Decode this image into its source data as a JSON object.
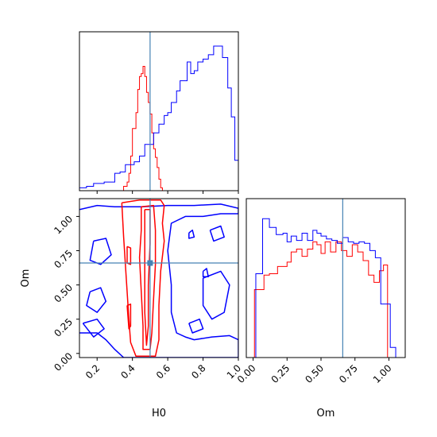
{
  "chart_data": {
    "type": "corner",
    "truth": {
      "H0": 0.5,
      "Om": 0.66
    },
    "colors": {
      "red": "#ff0000",
      "blue": "#0000ff",
      "truth": "#4682b4"
    },
    "panels": [
      {
        "id": "H0-marginal",
        "type": "histogram",
        "x_range": [
          0.1,
          1.0
        ],
        "series": [
          {
            "color": "#ff0000",
            "bins": [
              [
                0.1,
                0.0
              ],
              [
                0.34,
                0.0
              ],
              [
                0.35,
                0.03
              ],
              [
                0.37,
                0.06
              ],
              [
                0.38,
                0.12
              ],
              [
                0.39,
                0.24
              ],
              [
                0.4,
                0.43
              ],
              [
                0.42,
                0.54
              ],
              [
                0.43,
                0.7
              ],
              [
                0.44,
                0.79
              ],
              [
                0.45,
                0.81
              ],
              [
                0.46,
                0.86
              ],
              [
                0.47,
                0.79
              ],
              [
                0.48,
                0.68
              ],
              [
                0.49,
                0.61
              ],
              [
                0.5,
                0.53
              ],
              [
                0.51,
                0.4
              ],
              [
                0.52,
                0.29
              ],
              [
                0.53,
                0.23
              ],
              [
                0.54,
                0.16
              ],
              [
                0.55,
                0.08
              ],
              [
                0.56,
                0.02
              ],
              [
                0.57,
                0.0
              ]
            ]
          },
          {
            "color": "#0000ff",
            "bins": [
              [
                0.1,
                0.02
              ],
              [
                0.14,
                0.03
              ],
              [
                0.18,
                0.05
              ],
              [
                0.24,
                0.06
              ],
              [
                0.3,
                0.12
              ],
              [
                0.33,
                0.13
              ],
              [
                0.36,
                0.18
              ],
              [
                0.41,
                0.2
              ],
              [
                0.44,
                0.24
              ],
              [
                0.47,
                0.32
              ],
              [
                0.52,
                0.4
              ],
              [
                0.55,
                0.46
              ],
              [
                0.58,
                0.52
              ],
              [
                0.6,
                0.54
              ],
              [
                0.62,
                0.61
              ],
              [
                0.65,
                0.69
              ],
              [
                0.67,
                0.76
              ],
              [
                0.71,
                0.89
              ],
              [
                0.73,
                0.81
              ],
              [
                0.75,
                0.83
              ],
              [
                0.77,
                0.89
              ],
              [
                0.8,
                0.91
              ],
              [
                0.83,
                0.94
              ],
              [
                0.86,
                1.0
              ],
              [
                0.91,
                0.92
              ],
              [
                0.94,
                0.71
              ],
              [
                0.96,
                0.51
              ],
              [
                0.98,
                0.21
              ],
              [
                1.0,
                0.21
              ]
            ]
          }
        ]
      },
      {
        "id": "H0-Om-contour",
        "type": "contour",
        "x_range": [
          0.1,
          1.0
        ],
        "y_range": [
          -0.03,
          1.13
        ],
        "red_contours": [
          [
            [
              0.34,
              1.1
            ],
            [
              0.44,
              1.12
            ],
            [
              0.56,
              1.12
            ],
            [
              0.58,
              1.08
            ],
            [
              0.57,
              0.95
            ],
            [
              0.58,
              0.82
            ],
            [
              0.56,
              0.6
            ],
            [
              0.55,
              0.35
            ],
            [
              0.55,
              0.1
            ],
            [
              0.53,
              -0.02
            ],
            [
              0.42,
              -0.02
            ],
            [
              0.39,
              0.08
            ],
            [
              0.38,
              0.25
            ],
            [
              0.37,
              0.45
            ],
            [
              0.36,
              0.65
            ],
            [
              0.35,
              0.85
            ],
            [
              0.34,
              1.1
            ]
          ],
          [
            [
              0.45,
              1.07
            ],
            [
              0.52,
              1.08
            ],
            [
              0.53,
              0.9
            ],
            [
              0.53,
              0.65
            ],
            [
              0.52,
              0.4
            ],
            [
              0.51,
              0.15
            ],
            [
              0.5,
              0.03
            ],
            [
              0.46,
              0.03
            ],
            [
              0.46,
              0.2
            ],
            [
              0.45,
              0.45
            ],
            [
              0.44,
              0.7
            ],
            [
              0.45,
              0.9
            ],
            [
              0.45,
              1.07
            ]
          ],
          [
            [
              0.47,
              1.05
            ],
            [
              0.5,
              1.05
            ],
            [
              0.5,
              0.8
            ],
            [
              0.49,
              0.5
            ],
            [
              0.49,
              0.2
            ],
            [
              0.48,
              0.06
            ],
            [
              0.47,
              0.3
            ],
            [
              0.47,
              0.6
            ],
            [
              0.47,
              1.05
            ]
          ],
          [
            [
              0.37,
              0.35
            ],
            [
              0.39,
              0.36
            ],
            [
              0.39,
              0.2
            ],
            [
              0.38,
              0.18
            ],
            [
              0.37,
              0.35
            ]
          ],
          [
            [
              0.37,
              0.78
            ],
            [
              0.39,
              0.77
            ],
            [
              0.39,
              0.65
            ],
            [
              0.37,
              0.66
            ],
            [
              0.37,
              0.78
            ]
          ]
        ],
        "blue_contours": [
          [
            [
              0.1,
              1.05
            ],
            [
              0.2,
              1.08
            ],
            [
              0.3,
              1.07
            ],
            [
              0.45,
              1.07
            ],
            [
              0.6,
              1.08
            ],
            [
              0.75,
              1.08
            ],
            [
              0.9,
              1.09
            ],
            [
              1.0,
              1.06
            ],
            [
              1.0,
              1.02
            ],
            [
              0.9,
              1.02
            ],
            [
              0.8,
              1.0
            ],
            [
              0.7,
              1.0
            ],
            [
              0.62,
              0.95
            ],
            [
              0.6,
              0.75
            ],
            [
              0.62,
              0.5
            ],
            [
              0.62,
              0.3
            ],
            [
              0.65,
              0.15
            ],
            [
              0.7,
              0.12
            ],
            [
              0.75,
              0.1
            ],
            [
              0.85,
              0.12
            ],
            [
              0.95,
              0.13
            ],
            [
              1.0,
              0.1
            ],
            [
              1.0,
              -0.03
            ],
            [
              0.55,
              -0.03
            ],
            [
              0.35,
              -0.03
            ],
            [
              0.3,
              0.03
            ],
            [
              0.25,
              0.1
            ],
            [
              0.2,
              0.15
            ],
            [
              0.1,
              0.15
            ]
          ],
          [
            [
              0.18,
              0.82
            ],
            [
              0.25,
              0.84
            ],
            [
              0.28,
              0.72
            ],
            [
              0.22,
              0.65
            ],
            [
              0.16,
              0.68
            ],
            [
              0.18,
              0.82
            ]
          ],
          [
            [
              0.16,
              0.45
            ],
            [
              0.22,
              0.48
            ],
            [
              0.25,
              0.38
            ],
            [
              0.2,
              0.3
            ],
            [
              0.14,
              0.35
            ],
            [
              0.16,
              0.45
            ]
          ],
          [
            [
              0.12,
              0.22
            ],
            [
              0.2,
              0.25
            ],
            [
              0.24,
              0.18
            ],
            [
              0.18,
              0.12
            ],
            [
              0.12,
              0.22
            ]
          ],
          [
            [
              0.8,
              0.55
            ],
            [
              0.9,
              0.6
            ],
            [
              0.95,
              0.5
            ],
            [
              0.92,
              0.3
            ],
            [
              0.85,
              0.25
            ],
            [
              0.8,
              0.35
            ],
            [
              0.8,
              0.55
            ]
          ],
          [
            [
              0.84,
              0.9
            ],
            [
              0.9,
              0.93
            ],
            [
              0.92,
              0.85
            ],
            [
              0.86,
              0.82
            ],
            [
              0.84,
              0.9
            ]
          ],
          [
            [
              0.72,
              0.22
            ],
            [
              0.78,
              0.25
            ],
            [
              0.8,
              0.18
            ],
            [
              0.74,
              0.15
            ],
            [
              0.72,
              0.22
            ]
          ],
          [
            [
              0.72,
              0.88
            ],
            [
              0.74,
              0.9
            ],
            [
              0.75,
              0.85
            ],
            [
              0.72,
              0.84
            ],
            [
              0.72,
              0.88
            ]
          ],
          [
            [
              0.8,
              0.6
            ],
            [
              0.82,
              0.62
            ],
            [
              0.83,
              0.56
            ],
            [
              0.8,
              0.56
            ],
            [
              0.8,
              0.6
            ]
          ]
        ]
      },
      {
        "id": "Om-marginal",
        "type": "histogram",
        "x_range": [
          -0.05,
          1.12
        ],
        "series": [
          {
            "color": "#ff0000",
            "bins": [
              [
                0.0,
                0.0
              ],
              [
                0.01,
                0.47
              ],
              [
                0.08,
                0.57
              ],
              [
                0.12,
                0.58
              ],
              [
                0.18,
                0.63
              ],
              [
                0.22,
                0.63
              ],
              [
                0.25,
                0.66
              ],
              [
                0.28,
                0.73
              ],
              [
                0.32,
                0.75
              ],
              [
                0.36,
                0.7
              ],
              [
                0.4,
                0.75
              ],
              [
                0.44,
                0.8
              ],
              [
                0.47,
                0.78
              ],
              [
                0.5,
                0.72
              ],
              [
                0.53,
                0.8
              ],
              [
                0.57,
                0.73
              ],
              [
                0.61,
                0.8
              ],
              [
                0.65,
                0.74
              ],
              [
                0.69,
                0.7
              ],
              [
                0.73,
                0.78
              ],
              [
                0.77,
                0.73
              ],
              [
                0.81,
                0.67
              ],
              [
                0.85,
                0.57
              ],
              [
                0.89,
                0.52
              ],
              [
                0.93,
                0.6
              ],
              [
                0.96,
                0.64
              ],
              [
                0.98,
                0.64
              ],
              [
                0.99,
                0.0
              ]
            ]
          },
          {
            "color": "#0000ff",
            "bins": [
              [
                -0.05,
                0.0
              ],
              [
                0.0,
                0.0
              ],
              [
                0.02,
                0.58
              ],
              [
                0.07,
                0.96
              ],
              [
                0.12,
                0.9
              ],
              [
                0.17,
                0.85
              ],
              [
                0.22,
                0.86
              ],
              [
                0.25,
                0.8
              ],
              [
                0.28,
                0.84
              ],
              [
                0.32,
                0.81
              ],
              [
                0.36,
                0.86
              ],
              [
                0.4,
                0.81
              ],
              [
                0.44,
                0.88
              ],
              [
                0.47,
                0.86
              ],
              [
                0.5,
                0.84
              ],
              [
                0.54,
                0.82
              ],
              [
                0.58,
                0.81
              ],
              [
                0.62,
                0.79
              ],
              [
                0.66,
                0.83
              ],
              [
                0.7,
                0.8
              ],
              [
                0.74,
                0.79
              ],
              [
                0.78,
                0.8
              ],
              [
                0.82,
                0.79
              ],
              [
                0.86,
                0.74
              ],
              [
                0.9,
                0.69
              ],
              [
                0.94,
                0.37
              ],
              [
                0.98,
                0.37
              ],
              [
                1.01,
                0.07
              ],
              [
                1.03,
                0.07
              ],
              [
                1.05,
                0.0
              ]
            ]
          }
        ]
      }
    ],
    "axes": {
      "H0": {
        "label": "H0",
        "ticks": [
          0.2,
          0.4,
          0.6,
          0.8,
          1.0
        ],
        "tick_labels": [
          "0.2",
          "0.4",
          "0.6",
          "0.8",
          "1.0"
        ]
      },
      "Om": {
        "label": "Om",
        "ticks": [
          0.0,
          0.25,
          0.5,
          0.75,
          1.0
        ],
        "tick_labels": [
          "0.00",
          "0.25",
          "0.50",
          "0.75",
          "1.00"
        ]
      }
    }
  }
}
